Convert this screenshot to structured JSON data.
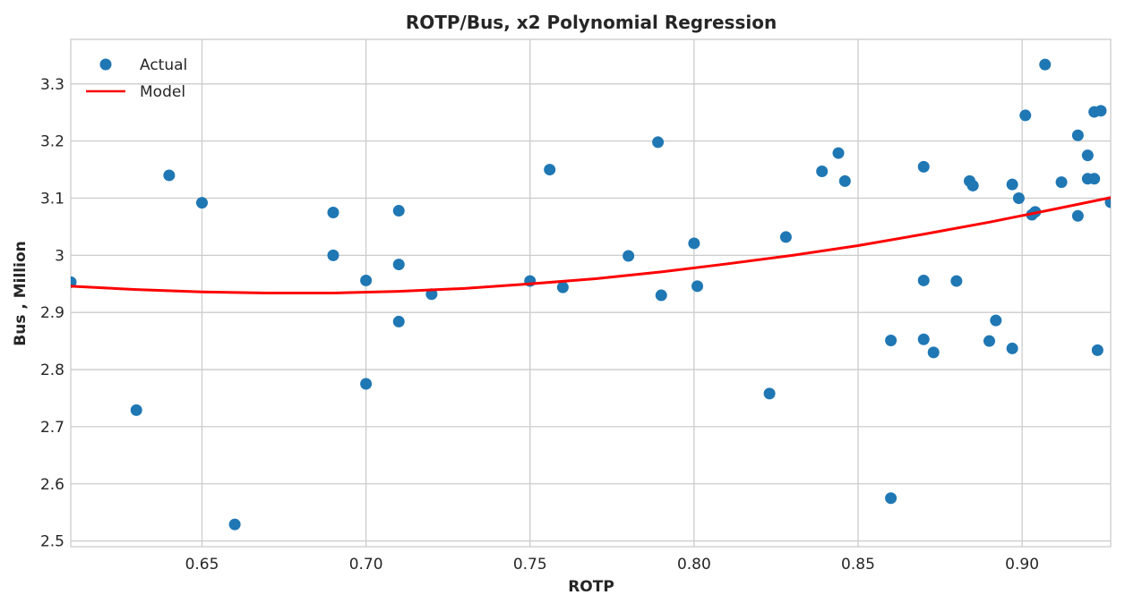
{
  "chart_data": {
    "type": "scatter",
    "title": "ROTP/Bus, x2 Polynomial Regression",
    "xlabel": "ROTP",
    "ylabel": "Bus , Million",
    "xlim": [
      0.61,
      0.927
    ],
    "ylim": [
      2.49,
      3.378
    ],
    "x_ticks": [
      0.65,
      0.7,
      0.75,
      0.8,
      0.85,
      0.9
    ],
    "x_tick_labels": [
      "0.65",
      "0.70",
      "0.75",
      "0.80",
      "0.85",
      "0.90"
    ],
    "y_ticks": [
      2.5,
      2.6,
      2.7,
      2.8,
      2.9,
      3.0,
      3.1,
      3.2,
      3.3
    ],
    "y_tick_labels": [
      "2.5",
      "2.6",
      "2.7",
      "2.8",
      "2.9",
      "3",
      "3.1",
      "3.2",
      "3.3"
    ],
    "grid": true,
    "legend_position": "top-left",
    "series": [
      {
        "name": "Actual",
        "kind": "scatter",
        "color": "#1f77b4",
        "points": [
          [
            0.61,
            2.953
          ],
          [
            0.63,
            2.729
          ],
          [
            0.64,
            3.14
          ],
          [
            0.65,
            3.092
          ],
          [
            0.66,
            2.529
          ],
          [
            0.69,
            3.075
          ],
          [
            0.69,
            3.0
          ],
          [
            0.7,
            2.956
          ],
          [
            0.7,
            2.775
          ],
          [
            0.71,
            3.078
          ],
          [
            0.71,
            2.984
          ],
          [
            0.71,
            2.884
          ],
          [
            0.72,
            2.932
          ],
          [
            0.75,
            2.955
          ],
          [
            0.756,
            3.15
          ],
          [
            0.76,
            2.944
          ],
          [
            0.78,
            2.999
          ],
          [
            0.789,
            3.198
          ],
          [
            0.79,
            2.93
          ],
          [
            0.8,
            3.021
          ],
          [
            0.801,
            2.946
          ],
          [
            0.823,
            2.758
          ],
          [
            0.828,
            3.032
          ],
          [
            0.839,
            3.147
          ],
          [
            0.844,
            3.179
          ],
          [
            0.846,
            3.13
          ],
          [
            0.86,
            2.851
          ],
          [
            0.86,
            2.575
          ],
          [
            0.87,
            3.155
          ],
          [
            0.87,
            2.956
          ],
          [
            0.87,
            2.853
          ],
          [
            0.873,
            2.83
          ],
          [
            0.88,
            2.955
          ],
          [
            0.884,
            3.13
          ],
          [
            0.885,
            3.122
          ],
          [
            0.89,
            2.85
          ],
          [
            0.892,
            2.886
          ],
          [
            0.897,
            3.124
          ],
          [
            0.897,
            2.837
          ],
          [
            0.899,
            3.1
          ],
          [
            0.901,
            3.245
          ],
          [
            0.903,
            3.071
          ],
          [
            0.904,
            3.076
          ],
          [
            0.907,
            3.334
          ],
          [
            0.912,
            3.128
          ],
          [
            0.917,
            3.21
          ],
          [
            0.917,
            3.069
          ],
          [
            0.92,
            3.175
          ],
          [
            0.92,
            3.134
          ],
          [
            0.922,
            3.251
          ],
          [
            0.922,
            3.134
          ],
          [
            0.923,
            2.834
          ],
          [
            0.924,
            3.253
          ],
          [
            0.927,
            3.093
          ]
        ]
      },
      {
        "name": "Model",
        "kind": "line",
        "color": "#ff0000",
        "x": [
          0.61,
          0.63,
          0.65,
          0.67,
          0.69,
          0.71,
          0.73,
          0.75,
          0.77,
          0.79,
          0.81,
          0.83,
          0.85,
          0.87,
          0.89,
          0.91,
          0.927
        ],
        "y": [
          2.946,
          2.94,
          2.936,
          2.934,
          2.934,
          2.937,
          2.942,
          2.95,
          2.959,
          2.971,
          2.985,
          3.0,
          3.017,
          3.037,
          3.058,
          3.081,
          3.101
        ]
      }
    ]
  }
}
